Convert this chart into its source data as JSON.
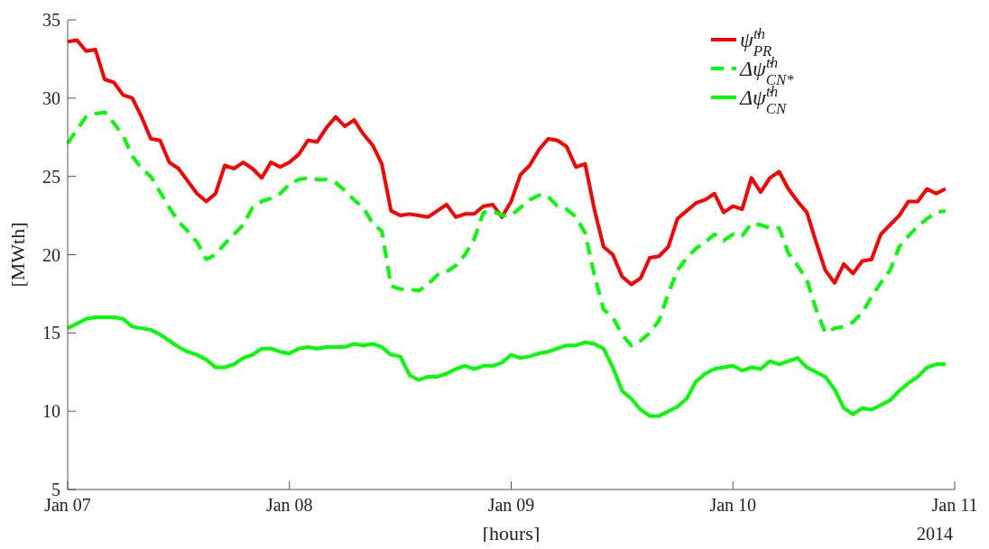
{
  "chart_data": {
    "type": "line",
    "x": [
      "2014-01-07T00:00",
      "2014-01-07T01:00",
      "2014-01-07T02:00",
      "2014-01-07T03:00",
      "2014-01-07T04:00",
      "2014-01-07T05:00",
      "2014-01-07T06:00",
      "2014-01-07T07:00",
      "2014-01-07T08:00",
      "2014-01-07T09:00",
      "2014-01-07T10:00",
      "2014-01-07T11:00",
      "2014-01-07T12:00",
      "2014-01-07T13:00",
      "2014-01-07T14:00",
      "2014-01-07T15:00",
      "2014-01-07T16:00",
      "2014-01-07T17:00",
      "2014-01-07T18:00",
      "2014-01-07T19:00",
      "2014-01-07T20:00",
      "2014-01-07T21:00",
      "2014-01-07T22:00",
      "2014-01-07T23:00",
      "2014-01-08T00:00",
      "2014-01-08T01:00",
      "2014-01-08T02:00",
      "2014-01-08T03:00",
      "2014-01-08T04:00",
      "2014-01-08T05:00",
      "2014-01-08T06:00",
      "2014-01-08T07:00",
      "2014-01-08T08:00",
      "2014-01-08T09:00",
      "2014-01-08T10:00",
      "2014-01-08T11:00",
      "2014-01-08T12:00",
      "2014-01-08T13:00",
      "2014-01-08T14:00",
      "2014-01-08T15:00",
      "2014-01-08T16:00",
      "2014-01-08T17:00",
      "2014-01-08T18:00",
      "2014-01-08T19:00",
      "2014-01-08T20:00",
      "2014-01-08T21:00",
      "2014-01-08T22:00",
      "2014-01-08T23:00",
      "2014-01-09T00:00",
      "2014-01-09T01:00",
      "2014-01-09T02:00",
      "2014-01-09T03:00",
      "2014-01-09T04:00",
      "2014-01-09T05:00",
      "2014-01-09T06:00",
      "2014-01-09T07:00",
      "2014-01-09T08:00",
      "2014-01-09T09:00",
      "2014-01-09T10:00",
      "2014-01-09T11:00",
      "2014-01-09T12:00",
      "2014-01-09T13:00",
      "2014-01-09T14:00",
      "2014-01-09T15:00",
      "2014-01-09T16:00",
      "2014-01-09T17:00",
      "2014-01-09T18:00",
      "2014-01-09T19:00",
      "2014-01-09T20:00",
      "2014-01-09T21:00",
      "2014-01-09T22:00",
      "2014-01-09T23:00",
      "2014-01-10T00:00",
      "2014-01-10T01:00",
      "2014-01-10T02:00",
      "2014-01-10T03:00",
      "2014-01-10T04:00",
      "2014-01-10T05:00",
      "2014-01-10T06:00",
      "2014-01-10T07:00",
      "2014-01-10T08:00",
      "2014-01-10T09:00",
      "2014-01-10T10:00",
      "2014-01-10T11:00",
      "2014-01-10T12:00",
      "2014-01-10T13:00",
      "2014-01-10T14:00",
      "2014-01-10T15:00",
      "2014-01-10T16:00",
      "2014-01-10T17:00",
      "2014-01-10T18:00",
      "2014-01-10T19:00",
      "2014-01-10T20:00",
      "2014-01-10T21:00",
      "2014-01-10T22:00",
      "2014-01-10T23:00"
    ],
    "series": [
      {
        "name": "ψ̇$^{th}$$_{PR}$",
        "color": "#ff0000",
        "line_style": "solid",
        "values": [
          33.6,
          33.7,
          33.0,
          33.1,
          31.2,
          31.0,
          30.2,
          30.0,
          28.8,
          27.4,
          27.3,
          25.9,
          25.5,
          24.7,
          23.9,
          23.4,
          23.9,
          25.7,
          25.5,
          25.9,
          25.5,
          24.9,
          25.9,
          25.6,
          25.9,
          26.4,
          27.3,
          27.2,
          28.1,
          28.8,
          28.2,
          28.6,
          27.7,
          27.0,
          25.8,
          22.8,
          22.5,
          22.6,
          22.5,
          22.4,
          22.8,
          23.2,
          22.4,
          22.6,
          22.6,
          23.1,
          23.2,
          22.4,
          23.4,
          25.1,
          25.7,
          26.7,
          27.4,
          27.3,
          26.9,
          25.6,
          25.8,
          22.9,
          20.5,
          20.0,
          18.6,
          18.1,
          18.5,
          19.8,
          19.9,
          20.5,
          22.3,
          22.8,
          23.3,
          23.5,
          23.9,
          22.7,
          23.1,
          22.9,
          24.9,
          24.0,
          24.9,
          25.3,
          24.2,
          23.4,
          22.7,
          20.8,
          19.0,
          18.2,
          19.4,
          18.8,
          19.6,
          19.7,
          21.3,
          21.9,
          22.5,
          23.4,
          23.4,
          24.2,
          23.9,
          24.2
        ]
      },
      {
        "name": "Δψ̇$^{th}$$_{CN*}$",
        "color": "#00ff00",
        "line_style": "dashed",
        "values": [
          27.1,
          28.0,
          28.8,
          29.0,
          29.1,
          28.4,
          27.6,
          26.3,
          25.5,
          25.0,
          24.0,
          23.0,
          22.1,
          21.5,
          20.8,
          19.7,
          20.0,
          20.7,
          21.3,
          21.9,
          23.0,
          23.4,
          23.6,
          23.9,
          24.5,
          24.8,
          24.9,
          24.8,
          24.8,
          24.6,
          24.1,
          23.5,
          23.0,
          22.0,
          21.5,
          18.0,
          17.8,
          17.8,
          17.7,
          18.1,
          18.7,
          18.9,
          19.3,
          20.0,
          21.0,
          22.7,
          22.8,
          22.5,
          22.5,
          23.0,
          23.5,
          23.8,
          23.7,
          23.1,
          22.9,
          22.4,
          21.4,
          18.7,
          16.5,
          16.0,
          14.9,
          14.2,
          14.5,
          15.0,
          15.8,
          17.5,
          19.0,
          19.8,
          20.4,
          20.8,
          21.3,
          20.9,
          21.3,
          21.2,
          22.0,
          21.9,
          21.7,
          21.7,
          20.1,
          19.3,
          18.4,
          16.5,
          15.0,
          15.3,
          15.4,
          15.7,
          16.3,
          17.3,
          18.2,
          19.0,
          20.5,
          21.2,
          21.8,
          22.3,
          22.7,
          22.8
        ]
      },
      {
        "name": "Δψ̇$^{th}$$_{CN}$",
        "color": "#00ff00",
        "line_style": "solid",
        "values": [
          15.3,
          15.6,
          15.9,
          16.0,
          16.0,
          16.0,
          15.9,
          15.4,
          15.3,
          15.2,
          14.9,
          14.5,
          14.1,
          13.8,
          13.6,
          13.3,
          12.8,
          12.8,
          13.0,
          13.4,
          13.6,
          14.0,
          14.0,
          13.8,
          13.7,
          14.0,
          14.1,
          14.0,
          14.1,
          14.1,
          14.1,
          14.3,
          14.2,
          14.3,
          14.1,
          13.6,
          13.5,
          12.3,
          12.0,
          12.2,
          12.2,
          12.4,
          12.7,
          12.9,
          12.7,
          12.9,
          12.9,
          13.1,
          13.6,
          13.4,
          13.5,
          13.7,
          13.8,
          14.0,
          14.2,
          14.2,
          14.4,
          14.3,
          14.0,
          12.8,
          11.3,
          10.8,
          10.1,
          9.7,
          9.7,
          10.0,
          10.3,
          10.8,
          11.9,
          12.4,
          12.7,
          12.8,
          12.9,
          12.6,
          12.8,
          12.7,
          13.2,
          13.0,
          13.2,
          13.4,
          12.8,
          12.5,
          12.2,
          11.4,
          10.2,
          9.8,
          10.2,
          10.1,
          10.4,
          10.7,
          11.3,
          11.8,
          12.2,
          12.8,
          13.0,
          13.0
        ]
      }
    ],
    "xlabel": "[hours]",
    "ylabel": "[MWth]",
    "xlim": [
      "2014-01-07",
      "2014-01-11"
    ],
    "xticks": [
      {
        "value": "2014-01-07",
        "label": "Jan 07"
      },
      {
        "value": "2014-01-08",
        "label": "Jan 08"
      },
      {
        "value": "2014-01-09",
        "label": "Jan 09"
      },
      {
        "value": "2014-01-10",
        "label": "Jan 10"
      },
      {
        "value": "2014-01-11",
        "label": "Jan 11"
      }
    ],
    "ylim": [
      5,
      35
    ],
    "yticks": [
      5,
      10,
      15,
      20,
      25,
      30,
      35
    ],
    "annotations": [
      "2014"
    ],
    "legend": "top right",
    "marker": "none"
  }
}
